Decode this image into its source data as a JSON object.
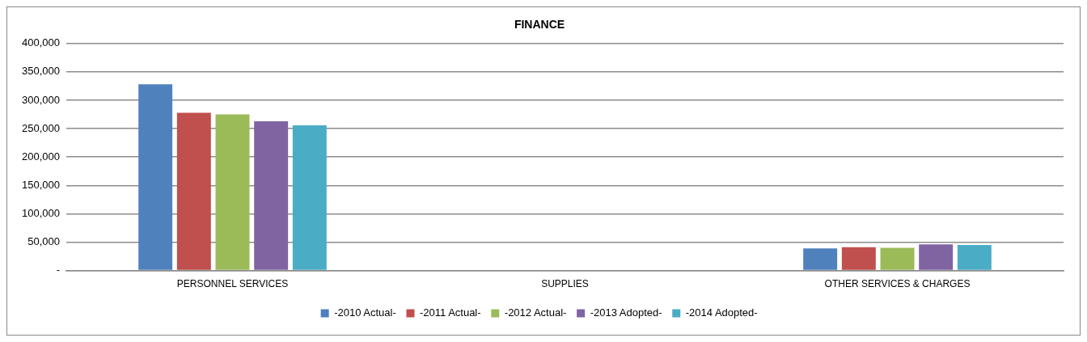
{
  "chart_data": {
    "type": "bar",
    "title": "FINANCE",
    "categories": [
      "PERSONNEL SERVICES",
      "SUPPLIES",
      "OTHER SERVICES & CHARGES"
    ],
    "series": [
      {
        "name": "-2010 Actual-",
        "color": "#4f81bd",
        "values": [
          328000,
          0,
          39000
        ]
      },
      {
        "name": "-2011 Actual-",
        "color": "#c0504d",
        "values": [
          278000,
          0,
          41000
        ]
      },
      {
        "name": "-2012 Actual-",
        "color": "#9bbb59",
        "values": [
          275000,
          0,
          40000
        ]
      },
      {
        "name": "-2013 Adopted-",
        "color": "#8064a2",
        "values": [
          263000,
          0,
          46000
        ]
      },
      {
        "name": "-2014 Adopted-",
        "color": "#4bacc6",
        "values": [
          256000,
          0,
          45000
        ]
      }
    ],
    "ylim": [
      0,
      400000
    ],
    "yticks": [
      {
        "value": 0,
        "label": "-"
      },
      {
        "value": 50000,
        "label": "50,000"
      },
      {
        "value": 100000,
        "label": "100,000"
      },
      {
        "value": 150000,
        "label": "150,000"
      },
      {
        "value": 200000,
        "label": "200,000"
      },
      {
        "value": 250000,
        "label": "250,000"
      },
      {
        "value": 300000,
        "label": "300,000"
      },
      {
        "value": 350000,
        "label": "350,000"
      },
      {
        "value": 400000,
        "label": "400,000"
      }
    ],
    "grid": "y",
    "legend": "bottom"
  }
}
